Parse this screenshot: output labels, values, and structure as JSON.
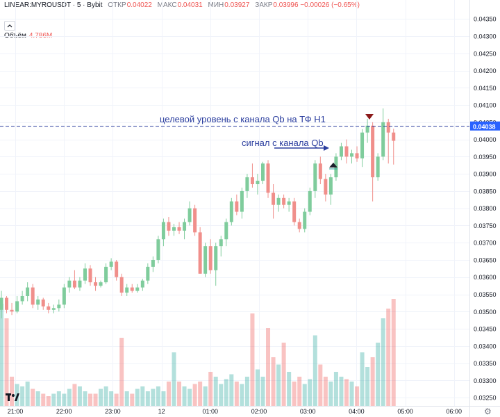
{
  "header": {
    "symbol": "LINEAR:MYROUSDT · 5 · Bybit",
    "ohlc": [
      {
        "label": "ОТКР",
        "value": "0.04022"
      },
      {
        "label": "МАКС",
        "value": "0.04031"
      },
      {
        "label": "МИН",
        "value": "0.03927"
      },
      {
        "label": "ЗАКР",
        "value": "0.03996 −0.00026 (−0.65%)"
      }
    ],
    "volume_label": "Объём",
    "volume_value": "4.786M"
  },
  "annotations": {
    "target": "целевой уровень с канала Qb на ТФ Н1",
    "signal": "сигнал с канала Qb"
  },
  "colors": {
    "up": "#26a69a",
    "down": "#ef5350",
    "line": "#2a3d9e",
    "price_tag": "#2962ff"
  },
  "chart_data": {
    "type": "candlestick",
    "x_ticks": [
      "21:00",
      "22:00",
      "23:00",
      "12",
      "01:00",
      "02:00",
      "03:00",
      "04:00",
      "05:00",
      "06:00"
    ],
    "y_ticks": [
      "0.04350",
      "0.04300",
      "0.04250",
      "0.04200",
      "0.04150",
      "0.04100",
      "0.04050",
      "0.04000",
      "0.03950",
      "0.03900",
      "0.03850",
      "0.03800",
      "0.03750",
      "0.03700",
      "0.03650",
      "0.03600",
      "0.03550",
      "0.03500",
      "0.03450",
      "0.03400",
      "0.03350",
      "0.03300",
      "0.03250"
    ],
    "ylim": [
      0.03226,
      0.04405
    ],
    "horizontal_line": 0.04038,
    "price_tag": "0.04038",
    "candles": [
      {
        "o": 0.03505,
        "h": 0.0356,
        "l": 0.0348,
        "c": 0.0354
      },
      {
        "o": 0.0354,
        "h": 0.03545,
        "l": 0.03495,
        "c": 0.03505
      },
      {
        "o": 0.03505,
        "h": 0.03525,
        "l": 0.0349,
        "c": 0.035
      },
      {
        "o": 0.035,
        "h": 0.03545,
        "l": 0.03495,
        "c": 0.0353
      },
      {
        "o": 0.0353,
        "h": 0.0356,
        "l": 0.0352,
        "c": 0.03545
      },
      {
        "o": 0.03545,
        "h": 0.03585,
        "l": 0.0353,
        "c": 0.0357
      },
      {
        "o": 0.0357,
        "h": 0.0358,
        "l": 0.0351,
        "c": 0.0352
      },
      {
        "o": 0.0352,
        "h": 0.03545,
        "l": 0.03505,
        "c": 0.03535
      },
      {
        "o": 0.03535,
        "h": 0.0354,
        "l": 0.03505,
        "c": 0.03515
      },
      {
        "o": 0.03515,
        "h": 0.03525,
        "l": 0.03495,
        "c": 0.03505
      },
      {
        "o": 0.03505,
        "h": 0.0352,
        "l": 0.03495,
        "c": 0.0351
      },
      {
        "o": 0.0351,
        "h": 0.03535,
        "l": 0.035,
        "c": 0.0352
      },
      {
        "o": 0.0352,
        "h": 0.0358,
        "l": 0.0351,
        "c": 0.0357
      },
      {
        "o": 0.0357,
        "h": 0.036,
        "l": 0.03555,
        "c": 0.0359
      },
      {
        "o": 0.0359,
        "h": 0.0362,
        "l": 0.03565,
        "c": 0.0357
      },
      {
        "o": 0.0357,
        "h": 0.036,
        "l": 0.0356,
        "c": 0.0359
      },
      {
        "o": 0.0359,
        "h": 0.0364,
        "l": 0.0358,
        "c": 0.03625
      },
      {
        "o": 0.03625,
        "h": 0.03635,
        "l": 0.03575,
        "c": 0.03585
      },
      {
        "o": 0.03585,
        "h": 0.036,
        "l": 0.0356,
        "c": 0.03575
      },
      {
        "o": 0.03575,
        "h": 0.0359,
        "l": 0.0357,
        "c": 0.03585
      },
      {
        "o": 0.03585,
        "h": 0.0364,
        "l": 0.0358,
        "c": 0.0363
      },
      {
        "o": 0.0363,
        "h": 0.03655,
        "l": 0.0362,
        "c": 0.03645
      },
      {
        "o": 0.03645,
        "h": 0.0365,
        "l": 0.0359,
        "c": 0.036
      },
      {
        "o": 0.036,
        "h": 0.0361,
        "l": 0.03545,
        "c": 0.03555
      },
      {
        "o": 0.03555,
        "h": 0.0358,
        "l": 0.03545,
        "c": 0.0357
      },
      {
        "o": 0.0357,
        "h": 0.0358,
        "l": 0.03555,
        "c": 0.0356
      },
      {
        "o": 0.0356,
        "h": 0.0358,
        "l": 0.03555,
        "c": 0.0357
      },
      {
        "o": 0.0357,
        "h": 0.03595,
        "l": 0.0356,
        "c": 0.0359
      },
      {
        "o": 0.0359,
        "h": 0.0364,
        "l": 0.0358,
        "c": 0.0363
      },
      {
        "o": 0.0363,
        "h": 0.0366,
        "l": 0.03615,
        "c": 0.0365
      },
      {
        "o": 0.0365,
        "h": 0.0372,
        "l": 0.0364,
        "c": 0.0371
      },
      {
        "o": 0.0371,
        "h": 0.0377,
        "l": 0.0369,
        "c": 0.0376
      },
      {
        "o": 0.0376,
        "h": 0.03775,
        "l": 0.0372,
        "c": 0.03735
      },
      {
        "o": 0.03735,
        "h": 0.03755,
        "l": 0.0372,
        "c": 0.03745
      },
      {
        "o": 0.03745,
        "h": 0.0376,
        "l": 0.03725,
        "c": 0.03735
      },
      {
        "o": 0.03735,
        "h": 0.0377,
        "l": 0.0371,
        "c": 0.0376
      },
      {
        "o": 0.0376,
        "h": 0.0382,
        "l": 0.0375,
        "c": 0.038
      },
      {
        "o": 0.038,
        "h": 0.0381,
        "l": 0.0372,
        "c": 0.0373
      },
      {
        "o": 0.0373,
        "h": 0.03745,
        "l": 0.0361,
        "c": 0.0361
      },
      {
        "o": 0.0361,
        "h": 0.037,
        "l": 0.036,
        "c": 0.0369
      },
      {
        "o": 0.0369,
        "h": 0.0371,
        "l": 0.0361,
        "c": 0.0362
      },
      {
        "o": 0.0362,
        "h": 0.037,
        "l": 0.03575,
        "c": 0.0369
      },
      {
        "o": 0.0369,
        "h": 0.0372,
        "l": 0.0366,
        "c": 0.0371
      },
      {
        "o": 0.0371,
        "h": 0.0377,
        "l": 0.0369,
        "c": 0.0376
      },
      {
        "o": 0.0376,
        "h": 0.0383,
        "l": 0.0375,
        "c": 0.0382
      },
      {
        "o": 0.0382,
        "h": 0.0384,
        "l": 0.0378,
        "c": 0.0379
      },
      {
        "o": 0.0379,
        "h": 0.0386,
        "l": 0.0377,
        "c": 0.0385
      },
      {
        "o": 0.0385,
        "h": 0.039,
        "l": 0.0383,
        "c": 0.0389
      },
      {
        "o": 0.0389,
        "h": 0.0393,
        "l": 0.0386,
        "c": 0.0387
      },
      {
        "o": 0.0387,
        "h": 0.039,
        "l": 0.0384,
        "c": 0.0388
      },
      {
        "o": 0.0388,
        "h": 0.03935,
        "l": 0.0387,
        "c": 0.0393
      },
      {
        "o": 0.0393,
        "h": 0.0394,
        "l": 0.0383,
        "c": 0.03845
      },
      {
        "o": 0.03845,
        "h": 0.0387,
        "l": 0.0377,
        "c": 0.0381
      },
      {
        "o": 0.0381,
        "h": 0.0384,
        "l": 0.0379,
        "c": 0.0383
      },
      {
        "o": 0.0383,
        "h": 0.0384,
        "l": 0.038,
        "c": 0.0381
      },
      {
        "o": 0.0381,
        "h": 0.0383,
        "l": 0.0379,
        "c": 0.0382
      },
      {
        "o": 0.0382,
        "h": 0.0383,
        "l": 0.0375,
        "c": 0.0376
      },
      {
        "o": 0.0376,
        "h": 0.0377,
        "l": 0.0373,
        "c": 0.0374
      },
      {
        "o": 0.0374,
        "h": 0.038,
        "l": 0.0373,
        "c": 0.0379
      },
      {
        "o": 0.0379,
        "h": 0.0386,
        "l": 0.0378,
        "c": 0.0385
      },
      {
        "o": 0.0385,
        "h": 0.0394,
        "l": 0.0383,
        "c": 0.0393
      },
      {
        "o": 0.0393,
        "h": 0.0395,
        "l": 0.0387,
        "c": 0.03885
      },
      {
        "o": 0.03885,
        "h": 0.039,
        "l": 0.0382,
        "c": 0.0384
      },
      {
        "o": 0.0384,
        "h": 0.039,
        "l": 0.0381,
        "c": 0.0389
      },
      {
        "o": 0.0389,
        "h": 0.0396,
        "l": 0.0388,
        "c": 0.0395
      },
      {
        "o": 0.0395,
        "h": 0.0399,
        "l": 0.0394,
        "c": 0.0398
      },
      {
        "o": 0.0398,
        "h": 0.04,
        "l": 0.0393,
        "c": 0.0395
      },
      {
        "o": 0.0395,
        "h": 0.0397,
        "l": 0.0393,
        "c": 0.0396
      },
      {
        "o": 0.0396,
        "h": 0.0398,
        "l": 0.03935,
        "c": 0.03945
      },
      {
        "o": 0.03945,
        "h": 0.0403,
        "l": 0.0392,
        "c": 0.0402
      },
      {
        "o": 0.0402,
        "h": 0.0406,
        "l": 0.0399,
        "c": 0.0404
      },
      {
        "o": 0.0404,
        "h": 0.0405,
        "l": 0.0382,
        "c": 0.0389
      },
      {
        "o": 0.0389,
        "h": 0.0396,
        "l": 0.0388,
        "c": 0.0395
      },
      {
        "o": 0.0395,
        "h": 0.0409,
        "l": 0.0394,
        "c": 0.0405
      },
      {
        "o": 0.0405,
        "h": 0.0406,
        "l": 0.0393,
        "c": 0.0402
      },
      {
        "o": 0.0402,
        "h": 0.04031,
        "l": 0.03927,
        "c": 0.03996
      }
    ],
    "volume": [
      0.42,
      0.36,
      0.12,
      0.09,
      0.08,
      0.1,
      0.07,
      0.06,
      0.05,
      0.04,
      0.05,
      0.06,
      0.05,
      0.07,
      0.09,
      0.08,
      0.06,
      0.05,
      0.05,
      0.07,
      0.08,
      0.06,
      0.05,
      0.28,
      0.06,
      0.05,
      0.07,
      0.08,
      0.06,
      0.07,
      0.08,
      0.06,
      0.1,
      0.22,
      0.1,
      0.08,
      0.07,
      0.09,
      0.1,
      0.08,
      0.14,
      0.12,
      0.09,
      0.11,
      0.13,
      0.1,
      0.09,
      0.12,
      0.38,
      0.15,
      0.12,
      0.32,
      0.2,
      0.17,
      0.26,
      0.14,
      0.1,
      0.12,
      0.09,
      0.11,
      0.29,
      0.17,
      0.12,
      0.1,
      0.14,
      0.12,
      0.11,
      0.1,
      0.08,
      0.22,
      0.16,
      0.2,
      0.26,
      0.36,
      0.4,
      0.44
    ]
  }
}
